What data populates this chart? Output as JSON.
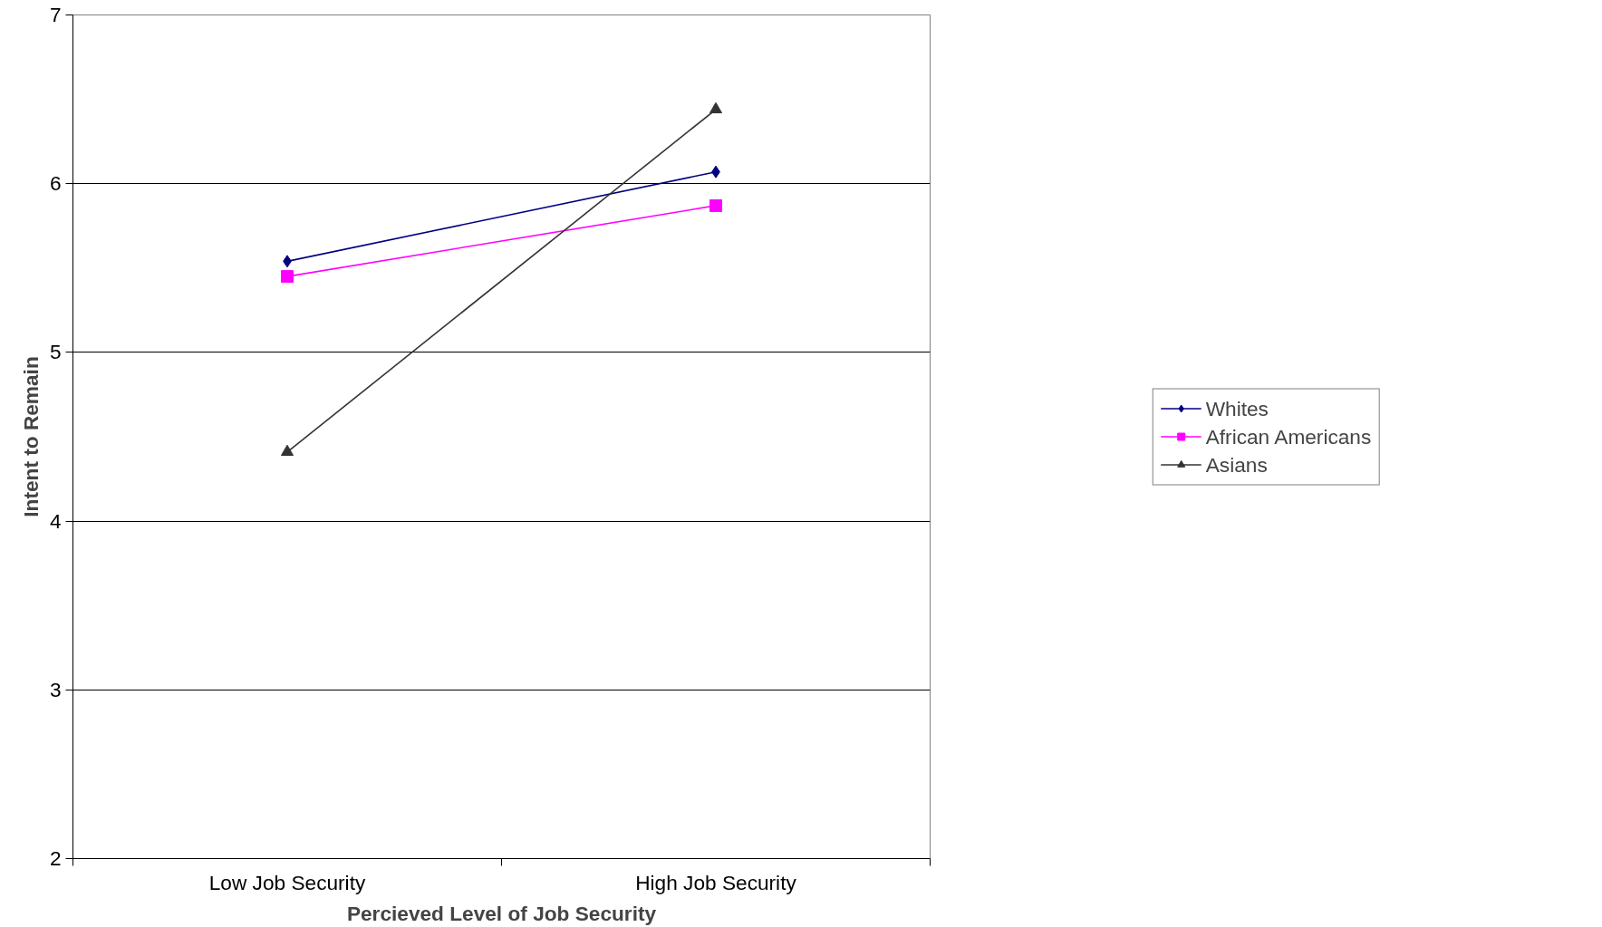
{
  "chart_data": {
    "type": "line",
    "xlabel": "Percieved Level of Job Security",
    "ylabel": "Intent to Remain",
    "categories": [
      "Low Job Security",
      "High Job Security"
    ],
    "series": [
      {
        "name": "Whites",
        "color": "#000080",
        "marker": "diamond",
        "values": [
          5.54,
          6.07
        ]
      },
      {
        "name": "African Americans",
        "color": "#ff00ff",
        "marker": "square",
        "values": [
          5.45,
          5.87
        ]
      },
      {
        "name": "Asians",
        "color": "#333333",
        "marker": "triangle",
        "values": [
          4.41,
          6.44
        ]
      }
    ],
    "ylim": [
      2,
      7
    ],
    "yticks": [
      2,
      3,
      4,
      5,
      6,
      7
    ],
    "grid": "y",
    "legend": "right",
    "line_style": "solid"
  }
}
